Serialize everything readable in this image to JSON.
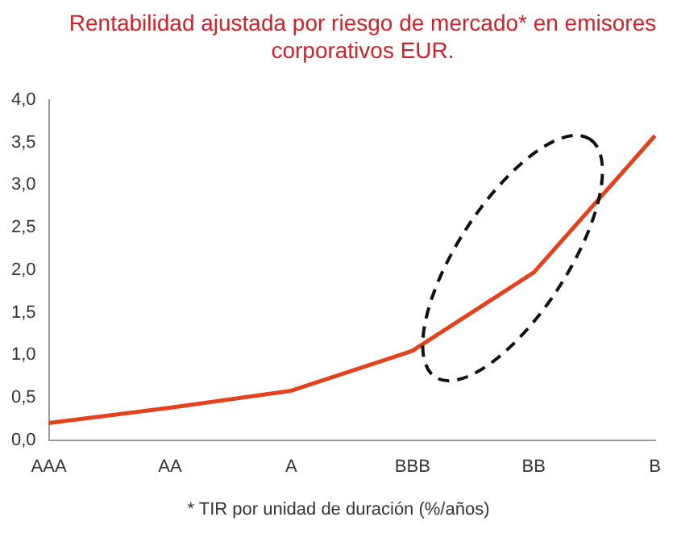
{
  "chart_data": {
    "type": "line",
    "title": "Rentabilidad ajustada por riesgo de mercado* en emisores corporativos EUR.",
    "categories": [
      "AAA",
      "AA",
      "A",
      "BBB",
      "BB",
      "B"
    ],
    "series": [
      {
        "color": "#e2431e",
        "values": [
          0.2,
          0.38,
          0.58,
          1.05,
          1.97,
          3.58
        ]
      }
    ],
    "ylim": [
      0,
      4
    ],
    "yticks": [
      {
        "value": 0,
        "label": "0,0"
      },
      {
        "value": 0.5,
        "label": "0,5"
      },
      {
        "value": 1,
        "label": "1,0"
      },
      {
        "value": 1.5,
        "label": "1,5"
      },
      {
        "value": 2,
        "label": "2,0"
      },
      {
        "value": 2.5,
        "label": "2,5"
      },
      {
        "value": 3,
        "label": "3,0"
      },
      {
        "value": 3.5,
        "label": "3,5"
      },
      {
        "value": 4,
        "label": "4,0"
      }
    ],
    "grid": false,
    "legend": false,
    "marker": "none",
    "line_style": "solid",
    "annotations": [
      "* TIR por unidad de duración (%/años)"
    ]
  }
}
